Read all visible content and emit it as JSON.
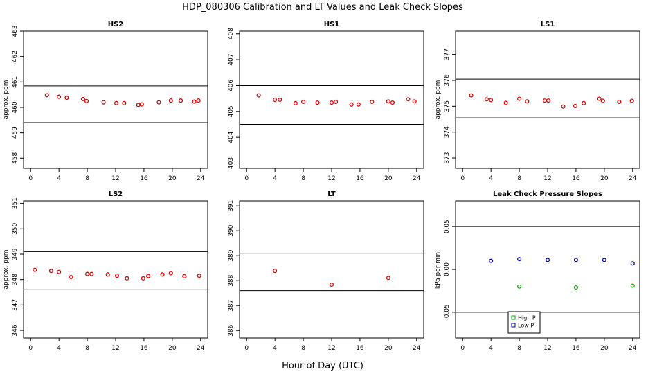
{
  "figure": {
    "title": "HDP_080306  Calibration and LT Values and Leak Check Slopes",
    "xlabel": "Hour of Day (UTC)"
  },
  "colors": {
    "calibration": "#e00000",
    "high_p": "#00b000",
    "low_p": "#0000cc",
    "axis": "#000000"
  },
  "chart_data": [
    {
      "type": "scatter",
      "title": "HS2",
      "xlabel": "",
      "ylabel": "approx. ppm",
      "xlim": [
        -1,
        25
      ],
      "ylim": [
        457.6,
        463
      ],
      "xticks": [
        "0",
        "4",
        "8",
        "12",
        "16",
        "20",
        "24"
      ],
      "yticks": [
        "458",
        "459",
        "460",
        "461",
        "462",
        "463"
      ],
      "hlines": [
        460.85,
        459.4
      ],
      "series": [
        {
          "x": [
            2.3,
            4.0,
            5.1,
            7.4,
            7.9,
            10.3,
            12.1,
            13.2,
            15.2,
            15.7,
            18.1,
            19.8,
            21.2,
            23.1,
            23.7
          ],
          "y": [
            460.48,
            460.42,
            460.38,
            460.33,
            460.25,
            460.2,
            460.17,
            460.17,
            460.1,
            460.12,
            460.2,
            460.27,
            460.27,
            460.23,
            460.27
          ]
        }
      ]
    },
    {
      "type": "scatter",
      "title": "HS1",
      "xlabel": "",
      "ylabel": "",
      "xlim": [
        -1,
        25
      ],
      "ylim": [
        402.8,
        408.1
      ],
      "xticks": [
        "0",
        "4",
        "8",
        "12",
        "16",
        "20",
        "24"
      ],
      "yticks": [
        "403",
        "404",
        "405",
        "406",
        "407",
        "408"
      ],
      "hlines": [
        406.0,
        404.5
      ],
      "series": [
        {
          "x": [
            1.7,
            4.0,
            4.7,
            6.9,
            8.0,
            10.0,
            12.0,
            12.6,
            14.8,
            15.8,
            17.7,
            20.0,
            20.6,
            22.8,
            23.7
          ],
          "y": [
            405.62,
            405.45,
            405.45,
            405.32,
            405.37,
            405.34,
            405.34,
            405.37,
            405.27,
            405.27,
            405.37,
            405.39,
            405.34,
            405.47,
            405.39
          ]
        }
      ]
    },
    {
      "type": "scatter",
      "title": "LS1",
      "xlabel": "",
      "ylabel": "approx. ppm",
      "xlim": [
        -1,
        25
      ],
      "ylim": [
        372.6,
        377.9
      ],
      "xticks": [
        "0",
        "4",
        "8",
        "12",
        "16",
        "20",
        "24"
      ],
      "yticks": [
        "373",
        "374",
        "375",
        "376",
        "377"
      ],
      "hlines": [
        376.05,
        374.55
      ],
      "series": [
        {
          "x": [
            1.2,
            3.4,
            4.0,
            6.1,
            8.0,
            9.1,
            11.6,
            12.1,
            14.2,
            15.9,
            17.1,
            19.3,
            19.8,
            22.1,
            23.9
          ],
          "y": [
            375.42,
            375.27,
            375.24,
            375.13,
            375.29,
            375.19,
            375.22,
            375.22,
            374.99,
            375.01,
            375.12,
            375.29,
            375.21,
            375.17,
            375.21
          ]
        }
      ]
    },
    {
      "type": "scatter",
      "title": "LS2",
      "xlabel": "",
      "ylabel": "approx. ppm",
      "xlim": [
        -1,
        25
      ],
      "ylim": [
        345.7,
        351.1
      ],
      "xticks": [
        "0",
        "4",
        "8",
        "12",
        "16",
        "20",
        "24"
      ],
      "yticks": [
        "346",
        "347",
        "348",
        "349",
        "350",
        "351"
      ],
      "hlines": [
        349.1,
        347.6
      ],
      "series": [
        {
          "x": [
            0.6,
            2.9,
            4.0,
            5.7,
            8.0,
            8.6,
            10.9,
            12.2,
            13.6,
            15.9,
            16.6,
            18.6,
            19.8,
            21.7,
            23.8
          ],
          "y": [
            348.38,
            348.34,
            348.3,
            348.1,
            348.22,
            348.22,
            348.2,
            348.15,
            348.05,
            348.05,
            348.14,
            348.2,
            348.25,
            348.13,
            348.15
          ]
        }
      ]
    },
    {
      "type": "scatter",
      "title": "LT",
      "xlabel": "",
      "ylabel": "",
      "xlim": [
        -1,
        25
      ],
      "ylim": [
        385.7,
        391.2
      ],
      "xticks": [
        "0",
        "4",
        "8",
        "12",
        "16",
        "20",
        "24"
      ],
      "yticks": [
        "386",
        "387",
        "388",
        "389",
        "390",
        "391"
      ],
      "hlines": [
        389.1,
        387.6
      ],
      "series": [
        {
          "x": [
            4.0,
            12.0,
            20.0
          ],
          "y": [
            388.39,
            387.84,
            388.11
          ]
        }
      ]
    },
    {
      "type": "scatter",
      "title": "Leak Check Pressure Slopes",
      "xlabel": "",
      "ylabel": "kPa per min.",
      "xlim": [
        -1,
        25
      ],
      "ylim": [
        -0.08,
        0.08
      ],
      "xticks": [
        "0",
        "4",
        "8",
        "12",
        "16",
        "20",
        "24"
      ],
      "yticks": [
        "-0.05",
        "0.00",
        "0.05"
      ],
      "ytick_values": [
        -0.05,
        0.0,
        0.05
      ],
      "hlines": [
        0.05,
        -0.05
      ],
      "legend": {
        "position": "bottom-center",
        "items": [
          "High P",
          "Low P"
        ]
      },
      "series": [
        {
          "name": "High P",
          "x": [
            8.0,
            16.0,
            24.0
          ],
          "y": [
            -0.02,
            -0.021,
            -0.019
          ]
        },
        {
          "name": "Low P",
          "x": [
            4.0,
            8.0,
            12.0,
            16.0,
            20.0,
            24.0
          ],
          "y": [
            0.01,
            0.012,
            0.011,
            0.011,
            0.011,
            0.007
          ]
        }
      ]
    }
  ]
}
